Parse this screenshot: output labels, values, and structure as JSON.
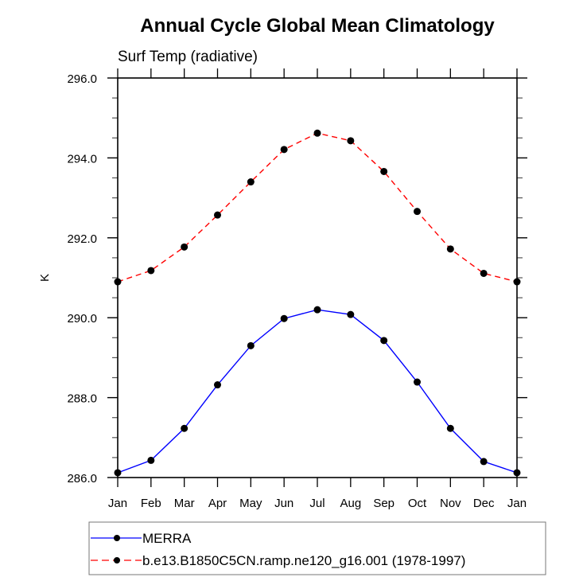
{
  "chart_data": {
    "type": "line",
    "title": "Annual Cycle Global Mean Climatology",
    "subtitle": "Surf Temp (radiative)",
    "xlabel": "",
    "ylabel": "K",
    "categories": [
      "Jan",
      "Feb",
      "Mar",
      "Apr",
      "May",
      "Jun",
      "Jul",
      "Aug",
      "Sep",
      "Oct",
      "Nov",
      "Dec",
      "Jan"
    ],
    "ylim": [
      286.0,
      296.0
    ],
    "yticks": [
      "286.0",
      "288.0",
      "290.0",
      "292.0",
      "294.0",
      "296.0"
    ],
    "ytick_values": [
      286,
      288,
      290,
      292,
      294,
      296
    ],
    "y_minor_step": 0.5,
    "grid": false,
    "legend_position": "bottom",
    "series": [
      {
        "name": "MERRA",
        "color": "#0000ff",
        "line_style": "solid",
        "marker": "filled-circle",
        "marker_color": "#000000",
        "values": [
          286.12,
          286.43,
          287.23,
          288.32,
          289.3,
          289.98,
          290.2,
          290.08,
          289.43,
          288.39,
          287.23,
          286.4,
          286.12
        ]
      },
      {
        "name": "b.e13.B1850C5CN.ramp.ne120_g16.001 (1978-1997)",
        "color": "#ff0000",
        "line_style": "dashed",
        "marker": "filled-circle",
        "marker_color": "#000000",
        "values": [
          290.9,
          291.18,
          291.77,
          292.57,
          293.4,
          294.21,
          294.62,
          294.43,
          293.66,
          292.66,
          291.72,
          291.11,
          290.9
        ]
      }
    ]
  }
}
